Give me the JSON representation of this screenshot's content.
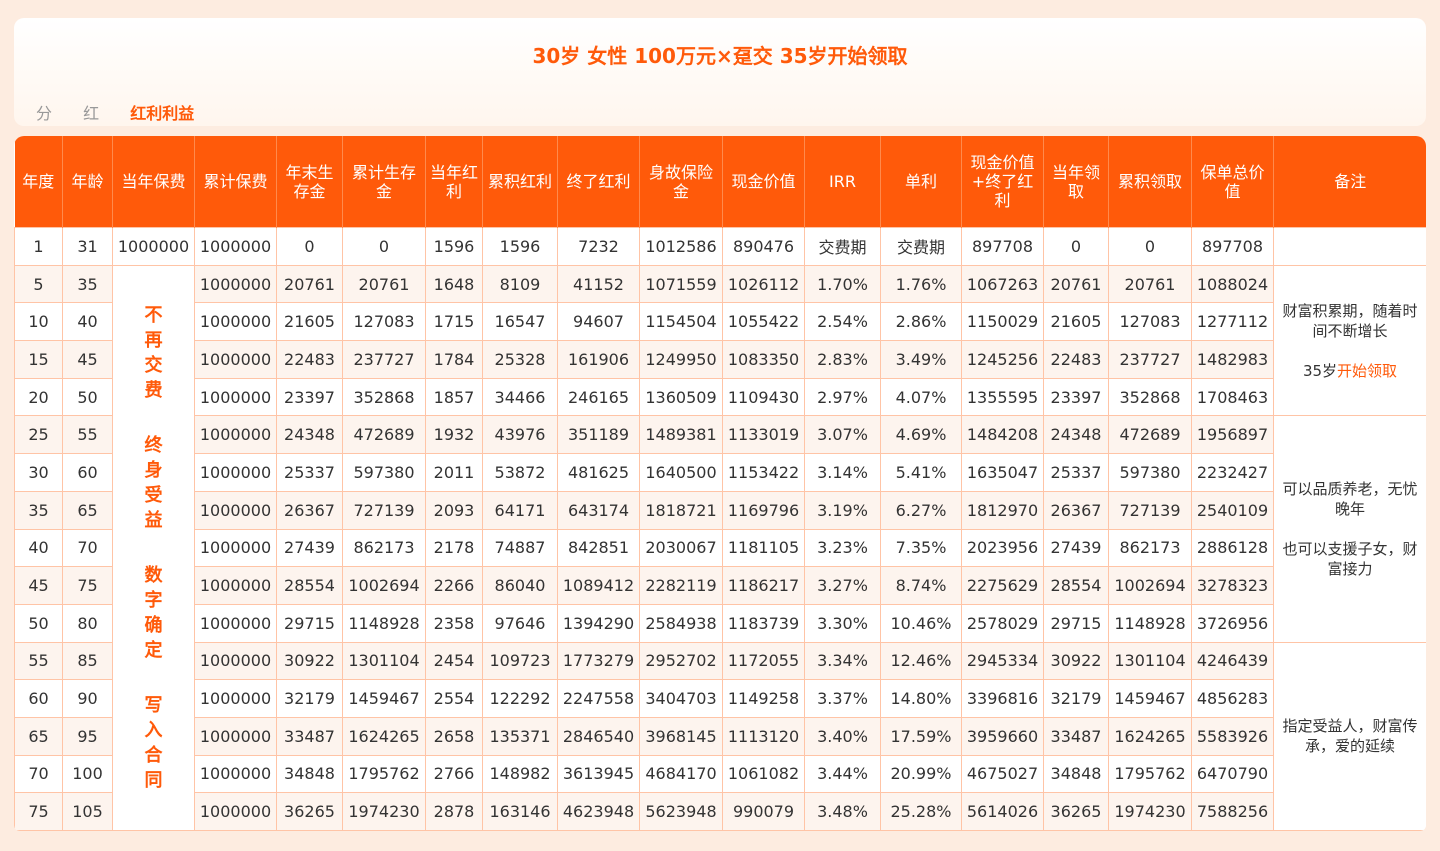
{
  "header": {
    "title": "30岁 女性 100万元×趸交 35岁开始领取",
    "tabs": [
      "分",
      "红",
      "红利利益"
    ],
    "active_tab": 2
  },
  "table": {
    "columns": [
      "年度",
      "年龄",
      "当年保费",
      "累计保费",
      "年末生存金",
      "累计生存金",
      "当年红利",
      "累积红利",
      "终了红利",
      "身故保险金",
      "现金价值",
      "IRR",
      "单利",
      "现金价值+终了红利",
      "当年领取",
      "累积领取",
      "保单总价值",
      "备注"
    ],
    "first_row": [
      "1",
      "31",
      "1000000",
      "1000000",
      "0",
      "0",
      "1596",
      "1596",
      "7232",
      "1012586",
      "890476",
      "交费期",
      "交费期",
      "897708",
      "0",
      "0",
      "897708"
    ],
    "rows": [
      [
        "5",
        "35",
        "1000000",
        "20761",
        "20761",
        "1648",
        "8109",
        "41152",
        "1071559",
        "1026112",
        "1.70%",
        "1.76%",
        "1067263",
        "20761",
        "20761",
        "1088024"
      ],
      [
        "10",
        "40",
        "1000000",
        "21605",
        "127083",
        "1715",
        "16547",
        "94607",
        "1154504",
        "1055422",
        "2.54%",
        "2.86%",
        "1150029",
        "21605",
        "127083",
        "1277112"
      ],
      [
        "15",
        "45",
        "1000000",
        "22483",
        "237727",
        "1784",
        "25328",
        "161906",
        "1249950",
        "1083350",
        "2.83%",
        "3.49%",
        "1245256",
        "22483",
        "237727",
        "1482983"
      ],
      [
        "20",
        "50",
        "1000000",
        "23397",
        "352868",
        "1857",
        "34466",
        "246165",
        "1360509",
        "1109430",
        "2.97%",
        "4.07%",
        "1355595",
        "23397",
        "352868",
        "1708463"
      ],
      [
        "25",
        "55",
        "1000000",
        "24348",
        "472689",
        "1932",
        "43976",
        "351189",
        "1489381",
        "1133019",
        "3.07%",
        "4.69%",
        "1484208",
        "24348",
        "472689",
        "1956897"
      ],
      [
        "30",
        "60",
        "1000000",
        "25337",
        "597380",
        "2011",
        "53872",
        "481625",
        "1640500",
        "1153422",
        "3.14%",
        "5.41%",
        "1635047",
        "25337",
        "597380",
        "2232427"
      ],
      [
        "35",
        "65",
        "1000000",
        "26367",
        "727139",
        "2093",
        "64171",
        "643174",
        "1818721",
        "1169796",
        "3.19%",
        "6.27%",
        "1812970",
        "26367",
        "727139",
        "2540109"
      ],
      [
        "40",
        "70",
        "1000000",
        "27439",
        "862173",
        "2178",
        "74887",
        "842851",
        "2030067",
        "1181105",
        "3.23%",
        "7.35%",
        "2023956",
        "27439",
        "862173",
        "2886128"
      ],
      [
        "45",
        "75",
        "1000000",
        "28554",
        "1002694",
        "2266",
        "86040",
        "1089412",
        "2282119",
        "1186217",
        "3.27%",
        "8.74%",
        "2275629",
        "28554",
        "1002694",
        "3278323"
      ],
      [
        "50",
        "80",
        "1000000",
        "29715",
        "1148928",
        "2358",
        "97646",
        "1394290",
        "2584938",
        "1183739",
        "3.30%",
        "10.46%",
        "2578029",
        "29715",
        "1148928",
        "3726956"
      ],
      [
        "55",
        "85",
        "1000000",
        "30922",
        "1301104",
        "2454",
        "109723",
        "1773279",
        "2952702",
        "1172055",
        "3.34%",
        "12.46%",
        "2945334",
        "30922",
        "1301104",
        "4246439"
      ],
      [
        "60",
        "90",
        "1000000",
        "32179",
        "1459467",
        "2554",
        "122292",
        "2247558",
        "3404703",
        "1149258",
        "3.37%",
        "14.80%",
        "3396816",
        "32179",
        "1459467",
        "4856283"
      ],
      [
        "65",
        "95",
        "1000000",
        "33487",
        "1624265",
        "2658",
        "135371",
        "2846540",
        "3968145",
        "1113120",
        "3.40%",
        "17.59%",
        "3959660",
        "33487",
        "1624265",
        "5583926"
      ],
      [
        "70",
        "100",
        "1000000",
        "34848",
        "1795762",
        "2766",
        "148982",
        "3613945",
        "4684170",
        "1061082",
        "3.44%",
        "20.99%",
        "4675027",
        "34848",
        "1795762",
        "6470790"
      ],
      [
        "75",
        "105",
        "1000000",
        "36265",
        "1974230",
        "2878",
        "163146",
        "4623948",
        "5623948",
        "990079",
        "3.48%",
        "25.28%",
        "5614026",
        "36265",
        "1974230",
        "7588256"
      ]
    ],
    "merged_premium_text": [
      "不再交费",
      "终身受益",
      "数字确定",
      "写入合同"
    ],
    "notes": {
      "group1_line1": "财富积累期，随着时间不断增长",
      "group1_line2_prefix": "35岁",
      "group1_line2_highlight": "开始领取",
      "group2_line1": "可以品质养老，无忧晚年",
      "group2_line2": "也可以支援子女，财富接力",
      "group3_line1": "指定受益人，财富传承，爱的延续"
    }
  },
  "colors": {
    "accent": "#ff5a0a",
    "header_bg": "#ff5a0a",
    "border": "#ffc4a6",
    "stripe": "#fdf4ee"
  }
}
